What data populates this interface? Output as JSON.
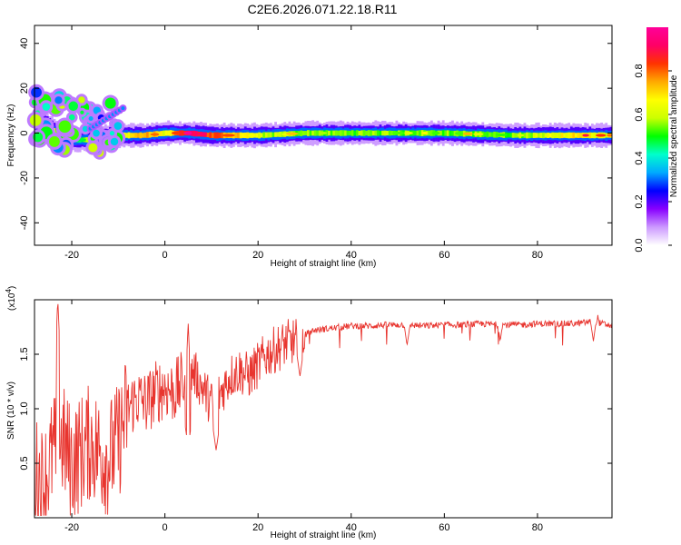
{
  "title": "C2E6.2026.071.22.18.R11",
  "chart_data": [
    {
      "type": "heatmap",
      "xlabel": "Height of straight line (km)",
      "ylabel": "Frequency (Hz)",
      "xlim": [
        -28,
        96
      ],
      "ylim": [
        -50,
        48
      ],
      "xticks": [
        -20,
        0,
        20,
        40,
        60,
        80
      ],
      "yticks": [
        40,
        20,
        0,
        -20,
        -40
      ],
      "colorbar": {
        "label": "Normalized spectral amplitude",
        "range": [
          0,
          1
        ],
        "ticks": [
          0.0,
          0.2,
          0.4,
          0.6,
          0.8
        ],
        "colors": [
          "#ffffff",
          "#cc99ff",
          "#8800ff",
          "#0000ff",
          "#00aaff",
          "#00ffcc",
          "#00ff00",
          "#ccff00",
          "#ffff00",
          "#ffaa00",
          "#ff3300",
          "#ff0066",
          "#ff0099"
        ]
      },
      "ridge": {
        "description": "narrow band near 0 Hz",
        "points": [
          {
            "x": -27,
            "y": 6,
            "amp": 0.55
          },
          {
            "x": -25,
            "y": 3,
            "amp": 0.7
          },
          {
            "x": -23,
            "y": -1,
            "amp": 0.5
          },
          {
            "x": -20,
            "y": -3,
            "amp": 0.4
          },
          {
            "x": -16,
            "y": -3,
            "amp": 0.55
          },
          {
            "x": -12,
            "y": -1,
            "amp": 0.45
          },
          {
            "x": -5,
            "y": -1,
            "amp": 0.75
          },
          {
            "x": 0,
            "y": 0,
            "amp": 0.6
          },
          {
            "x": 5,
            "y": 0,
            "amp": 0.95
          },
          {
            "x": 10,
            "y": -1,
            "amp": 0.8
          },
          {
            "x": 15,
            "y": -1,
            "amp": 0.7
          },
          {
            "x": 20,
            "y": -1,
            "amp": 0.55
          },
          {
            "x": 30,
            "y": 0,
            "amp": 0.5
          },
          {
            "x": 45,
            "y": 0,
            "amp": 0.5
          },
          {
            "x": 60,
            "y": 0,
            "amp": 0.5
          },
          {
            "x": 75,
            "y": -1,
            "amp": 0.5
          },
          {
            "x": 88,
            "y": -1,
            "amp": 0.65
          },
          {
            "x": 96,
            "y": -1,
            "amp": 0.6
          }
        ]
      }
    },
    {
      "type": "line",
      "xlabel": "Height of straight line (km)",
      "ylabel": "SNR (10 * v/v)",
      "y_multiplier_label": "(x10",
      "y_multiplier_exp": "4",
      "xlim": [
        -28,
        96
      ],
      "ylim": [
        0,
        2.0
      ],
      "xticks": [
        -20,
        0,
        20,
        40,
        60,
        80
      ],
      "yticks": [
        0.5,
        1.0,
        1.5
      ],
      "ytick_labels": [
        "0.5",
        "1.0",
        "1.5"
      ],
      "series_color": "#e8352f",
      "x": [
        -28,
        -26,
        -24,
        -22,
        -20,
        -18,
        -16,
        -14,
        -12,
        -10,
        -8,
        -6,
        -4,
        -2,
        0,
        2,
        4,
        6,
        8,
        10,
        12,
        14,
        16,
        18,
        20,
        22,
        24,
        26,
        28,
        30,
        32,
        36,
        40,
        44,
        48,
        52,
        56,
        60,
        64,
        68,
        72,
        76,
        80,
        84,
        88,
        92,
        96
      ],
      "y": [
        0.4,
        0.3,
        0.6,
        0.7,
        0.5,
        0.6,
        0.7,
        0.6,
        0.55,
        0.7,
        1.0,
        1.1,
        1.05,
        1.15,
        1.2,
        1.15,
        1.25,
        1.35,
        1.2,
        1.05,
        1.15,
        1.3,
        1.35,
        1.3,
        1.4,
        1.5,
        1.55,
        1.6,
        1.62,
        1.68,
        1.72,
        1.74,
        1.76,
        1.76,
        1.77,
        1.77,
        1.76,
        1.77,
        1.77,
        1.78,
        1.77,
        1.77,
        1.78,
        1.78,
        1.78,
        1.8,
        1.76
      ],
      "dips": [
        {
          "x": 5,
          "y": 0.65
        },
        {
          "x": 11,
          "y": 0.62
        },
        {
          "x": 29,
          "y": 1.3
        },
        {
          "x": 52,
          "y": 1.58
        },
        {
          "x": 72,
          "y": 1.62
        },
        {
          "x": 92,
          "y": 1.62
        }
      ],
      "spikes": [
        {
          "x": -23,
          "y": 2.0
        },
        {
          "x": 5,
          "y": 1.78
        },
        {
          "x": 93,
          "y": 1.9
        }
      ]
    }
  ]
}
